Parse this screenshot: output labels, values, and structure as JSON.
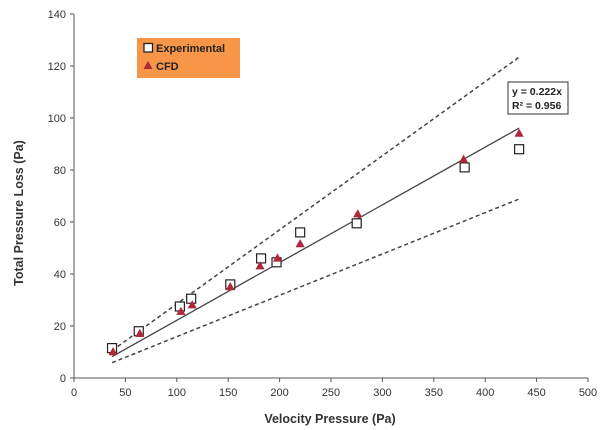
{
  "chart_data": {
    "type": "scatter",
    "xlabel": "Velocity Pressure (Pa)",
    "ylabel": "Total Pressure Loss (Pa)",
    "xlim": [
      0,
      500
    ],
    "ylim": [
      0,
      140
    ],
    "xticks": [
      "0",
      "50",
      "100",
      "150",
      "200",
      "250",
      "300",
      "350",
      "400",
      "450",
      "500"
    ],
    "yticks": [
      "0",
      "20",
      "40",
      "60",
      "80",
      "100",
      "120",
      "140"
    ],
    "grid": false,
    "legend_position": "top-left",
    "legend_background": "#F79646",
    "series": [
      {
        "name": "Experimental",
        "marker": "square-open",
        "color": "#222222",
        "points": [
          {
            "x": 37,
            "y": 11.5
          },
          {
            "x": 63,
            "y": 18
          },
          {
            "x": 103,
            "y": 27.5
          },
          {
            "x": 114,
            "y": 30.5
          },
          {
            "x": 152,
            "y": 36
          },
          {
            "x": 182,
            "y": 46
          },
          {
            "x": 197,
            "y": 44.5
          },
          {
            "x": 220,
            "y": 56
          },
          {
            "x": 275,
            "y": 59.5
          },
          {
            "x": 380,
            "y": 81
          },
          {
            "x": 433,
            "y": 88
          }
        ]
      },
      {
        "name": "CFD",
        "marker": "triangle-filled",
        "color": "#B0283C",
        "points": [
          {
            "x": 38,
            "y": 10
          },
          {
            "x": 64,
            "y": 17
          },
          {
            "x": 104,
            "y": 25.5
          },
          {
            "x": 115,
            "y": 28
          },
          {
            "x": 152,
            "y": 35
          },
          {
            "x": 181,
            "y": 43
          },
          {
            "x": 198,
            "y": 46
          },
          {
            "x": 220,
            "y": 51.5
          },
          {
            "x": 276,
            "y": 63
          },
          {
            "x": 379,
            "y": 84
          },
          {
            "x": 433,
            "y": 94
          }
        ]
      }
    ],
    "trendline": {
      "style": "solid",
      "slope": 0.222,
      "x_start": 37,
      "x_end": 433,
      "equation_line1": "y = 0.222x",
      "equation_line2": "R² = 0.956"
    },
    "bounds": [
      {
        "style": "dashed",
        "slope": 0.285,
        "x_start": 37,
        "x_end": 433
      },
      {
        "style": "dashed",
        "slope": 0.159,
        "x_start": 37,
        "x_end": 433
      }
    ]
  }
}
